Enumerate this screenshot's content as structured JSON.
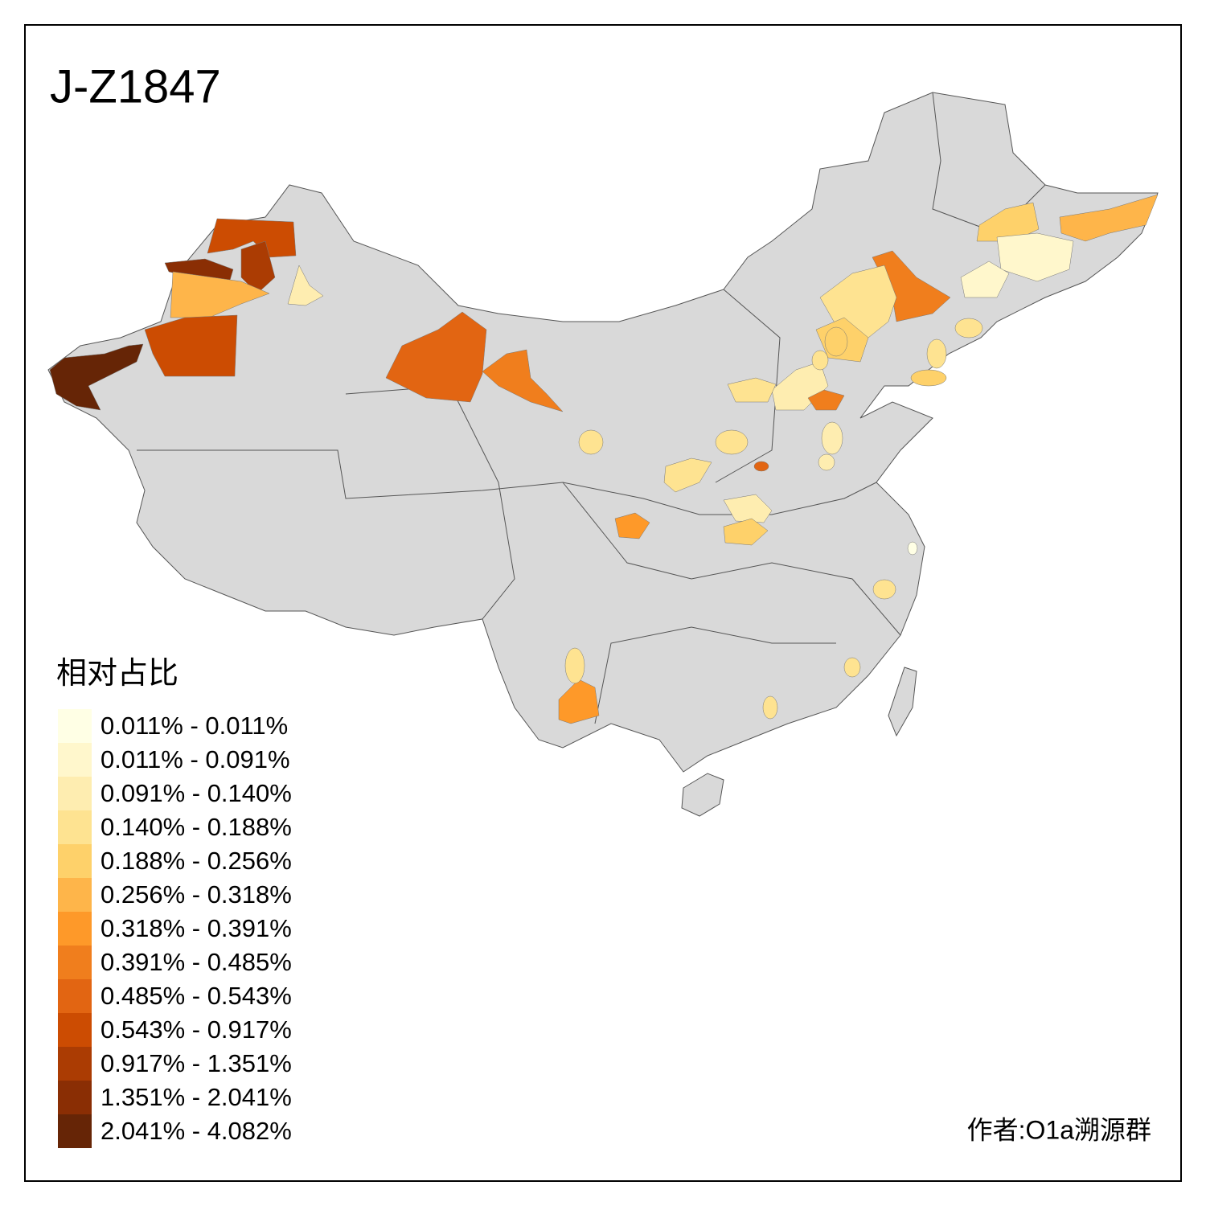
{
  "title": "J-Z1847",
  "legend": {
    "title": "相对占比",
    "items": [
      {
        "label": "0.011% - 0.011%",
        "color": "#FFFFE5"
      },
      {
        "label": "0.011% - 0.091%",
        "color": "#FFF7CC"
      },
      {
        "label": "0.091% - 0.140%",
        "color": "#FEEDB0"
      },
      {
        "label": "0.140% - 0.188%",
        "color": "#FEE391"
      },
      {
        "label": "0.188% - 0.256%",
        "color": "#FED16A"
      },
      {
        "label": "0.256% - 0.318%",
        "color": "#FEB54A"
      },
      {
        "label": "0.318% - 0.391%",
        "color": "#FE9929"
      },
      {
        "label": "0.391% - 0.485%",
        "color": "#F07E1D"
      },
      {
        "label": "0.485% - 0.543%",
        "color": "#E26512"
      },
      {
        "label": "0.543% - 0.917%",
        "color": "#CC4C02"
      },
      {
        "label": "0.917% - 1.351%",
        "color": "#AB3C03"
      },
      {
        "label": "1.351% - 2.041%",
        "color": "#8A2E04"
      },
      {
        "label": "2.041% - 4.082%",
        "color": "#662506"
      }
    ]
  },
  "credit": "作者:O1a溯源群"
}
